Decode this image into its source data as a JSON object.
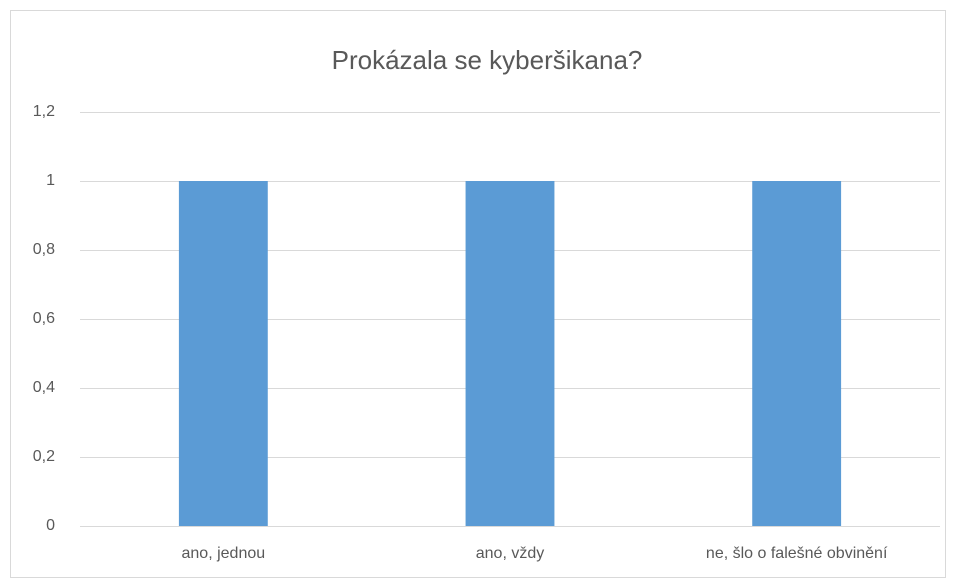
{
  "chart_data": {
    "type": "bar",
    "title": "Prokázala se kyberšikana?",
    "categories": [
      "ano, jednou",
      "ano, vždy",
      "ne, šlo o falešné obvinění"
    ],
    "values": [
      1,
      1,
      1
    ],
    "color": "#5b9bd5",
    "ylim": [
      0,
      1.2
    ],
    "yticks": [
      0,
      {
        "value": 0.2,
        "label": "0,2"
      },
      {
        "value": 0.4,
        "label": "0,4"
      },
      {
        "value": 0.6,
        "label": "0,6"
      },
      {
        "value": 0.8,
        "label": "0,8"
      },
      1,
      {
        "value": 1.2,
        "label": "1,2"
      }
    ],
    "grid": true
  }
}
